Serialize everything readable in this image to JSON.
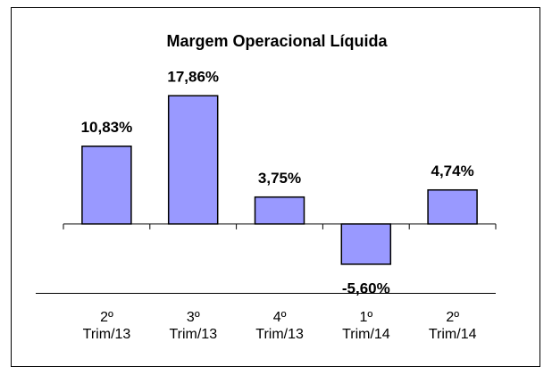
{
  "chart_data": {
    "type": "bar",
    "title": "Margem Operacional Líquida",
    "categories": [
      "2º\nTrim/13",
      "3º\nTrim/13",
      "4º\nTrim/13",
      "1º\nTrim/14",
      "2º\nTrim/14"
    ],
    "values": [
      10.83,
      17.86,
      3.75,
      -5.6,
      4.74
    ],
    "value_labels": [
      "10,83%",
      "17,86%",
      "3,75%",
      "-5,60%",
      "4,74%"
    ],
    "color": "#9999ff",
    "ylim": [
      -8,
      20
    ]
  }
}
